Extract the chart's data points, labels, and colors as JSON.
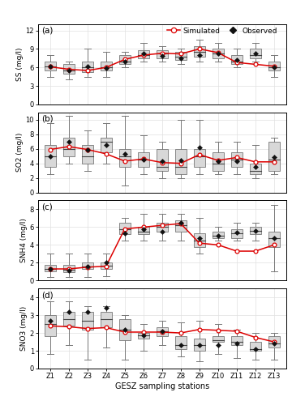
{
  "stations": [
    "Z1",
    "Z2",
    "Z3",
    "Z4",
    "Z5",
    "Z6",
    "Z7",
    "Z8",
    "Z9",
    "Z10",
    "Z11",
    "Z12",
    "Z13"
  ],
  "xlabel": "GESZ sampling stations",
  "panels": [
    {
      "label": "(a)",
      "ylabel": "SS (mg/l)",
      "ylim": [
        0,
        13
      ],
      "yticks": [
        0,
        3,
        6,
        9,
        12
      ],
      "simulated": [
        6.1,
        5.7,
        5.5,
        6.0,
        7.3,
        8.0,
        8.3,
        8.2,
        9.0,
        8.4,
        6.8,
        6.5,
        6.2
      ],
      "observed": [
        6.2,
        5.5,
        6.2,
        5.9,
        7.0,
        8.2,
        7.9,
        7.5,
        8.0,
        8.3,
        7.2,
        8.2,
        6.0
      ],
      "box_q1": [
        5.5,
        5.0,
        5.2,
        5.5,
        6.5,
        7.5,
        7.5,
        7.2,
        7.8,
        7.5,
        6.5,
        7.5,
        5.5
      ],
      "box_q3": [
        7.0,
        6.5,
        7.0,
        7.0,
        8.0,
        8.8,
        8.8,
        8.5,
        9.5,
        9.0,
        8.0,
        9.0,
        7.0
      ],
      "box_med": [
        6.2,
        5.5,
        6.0,
        6.0,
        7.0,
        8.0,
        8.2,
        7.8,
        8.5,
        8.2,
        7.0,
        8.0,
        6.0
      ],
      "box_wlo": [
        4.5,
        4.0,
        4.5,
        4.5,
        6.0,
        7.0,
        7.0,
        6.5,
        7.0,
        7.0,
        6.0,
        7.0,
        4.5
      ],
      "box_whi": [
        8.0,
        7.0,
        9.0,
        8.5,
        8.5,
        10.0,
        9.5,
        9.0,
        10.5,
        10.0,
        9.0,
        10.0,
        8.0
      ]
    },
    {
      "label": "(b)",
      "ylabel": "SO2 (mg/l)",
      "ylim": [
        0,
        11
      ],
      "yticks": [
        0,
        2,
        4,
        6,
        8,
        10
      ],
      "simulated": [
        5.9,
        6.3,
        5.9,
        5.3,
        4.3,
        4.6,
        4.1,
        4.0,
        5.2,
        4.4,
        4.8,
        4.2,
        4.2
      ],
      "observed": [
        5.0,
        7.0,
        5.8,
        6.5,
        5.3,
        4.5,
        4.3,
        4.4,
        6.2,
        4.3,
        4.3,
        3.5,
        4.8
      ],
      "box_q1": [
        3.5,
        5.0,
        4.0,
        5.5,
        3.5,
        3.5,
        3.0,
        2.5,
        3.5,
        3.0,
        3.5,
        2.5,
        3.0
      ],
      "box_q3": [
        6.5,
        7.5,
        6.5,
        7.5,
        6.0,
        5.5,
        6.0,
        6.0,
        6.0,
        5.5,
        5.5,
        4.0,
        7.0
      ],
      "box_med": [
        5.0,
        6.0,
        5.0,
        7.0,
        5.0,
        4.5,
        3.5,
        3.5,
        5.0,
        4.0,
        4.5,
        3.0,
        4.5
      ],
      "box_wlo": [
        2.5,
        4.0,
        3.0,
        4.0,
        1.0,
        2.5,
        2.0,
        2.0,
        2.5,
        2.5,
        2.5,
        2.0,
        2.5
      ],
      "box_whi": [
        9.5,
        10.5,
        8.5,
        9.5,
        10.5,
        7.8,
        7.0,
        10.0,
        10.0,
        7.0,
        7.0,
        6.5,
        7.5
      ]
    },
    {
      "label": "(c)",
      "ylabel": "SNH4 (mg/l)",
      "ylim": [
        0,
        9
      ],
      "yticks": [
        0,
        2,
        4,
        6,
        8
      ],
      "simulated": [
        1.3,
        1.3,
        1.5,
        1.6,
        5.8,
        6.0,
        6.2,
        6.4,
        4.2,
        4.0,
        3.3,
        3.3,
        4.0
      ],
      "observed": [
        1.3,
        1.1,
        1.6,
        2.0,
        5.3,
        5.8,
        5.5,
        6.5,
        4.8,
        5.0,
        5.4,
        5.6,
        4.8
      ],
      "box_q1": [
        1.0,
        0.9,
        1.3,
        1.3,
        5.2,
        5.2,
        5.5,
        5.5,
        3.8,
        4.8,
        4.8,
        5.2,
        3.8
      ],
      "box_q3": [
        1.8,
        1.8,
        2.0,
        2.0,
        6.5,
        6.0,
        6.5,
        6.8,
        5.3,
        5.5,
        5.8,
        6.0,
        5.5
      ],
      "box_med": [
        1.3,
        1.2,
        1.6,
        1.7,
        5.8,
        5.5,
        6.0,
        6.2,
        4.5,
        5.0,
        5.3,
        5.6,
        4.8
      ],
      "box_wlo": [
        0.4,
        0.4,
        0.4,
        0.5,
        4.5,
        4.5,
        4.5,
        4.5,
        3.0,
        4.5,
        4.5,
        4.5,
        1.0
      ],
      "box_whi": [
        3.0,
        3.0,
        3.0,
        3.0,
        7.0,
        7.5,
        7.5,
        7.5,
        7.0,
        6.0,
        6.5,
        6.5,
        8.5
      ]
    },
    {
      "label": "(d)",
      "ylabel": "SNO3 (mg/l)",
      "ylim": [
        0,
        4.5
      ],
      "yticks": [
        0,
        1,
        2,
        3,
        4
      ],
      "simulated": [
        2.4,
        2.35,
        2.25,
        2.3,
        2.05,
        2.05,
        2.05,
        2.0,
        2.2,
        2.15,
        2.1,
        1.75,
        1.5
      ],
      "observed": [
        2.7,
        3.2,
        3.2,
        3.4,
        2.2,
        1.85,
        2.1,
        1.3,
        1.3,
        1.3,
        1.4,
        1.1,
        1.4
      ],
      "box_q1": [
        1.8,
        2.4,
        2.2,
        2.3,
        1.6,
        1.7,
        1.8,
        1.1,
        1.0,
        1.5,
        1.3,
        1.0,
        1.2
      ],
      "box_q3": [
        3.0,
        3.2,
        3.2,
        3.2,
        2.8,
        2.0,
        2.3,
        1.8,
        1.7,
        1.8,
        1.8,
        1.5,
        1.8
      ],
      "box_med": [
        2.5,
        2.8,
        2.7,
        2.8,
        2.2,
        1.85,
        2.1,
        1.3,
        1.3,
        1.6,
        1.5,
        1.1,
        1.4
      ],
      "box_wlo": [
        0.8,
        1.3,
        0.5,
        1.2,
        0.5,
        1.0,
        1.3,
        0.7,
        0.4,
        0.8,
        0.6,
        0.5,
        0.5
      ],
      "box_whi": [
        3.8,
        3.8,
        3.5,
        3.5,
        3.0,
        2.5,
        2.7,
        2.6,
        2.7,
        2.5,
        2.2,
        2.0,
        2.0
      ]
    }
  ],
  "sim_color": "#dd0000",
  "obs_color": "#111111",
  "box_face": "#d8d8d8",
  "box_edge": "#777777",
  "grid_color": "#e0e0e0",
  "bg_color": "#ffffff",
  "legend_sim_label": "Simulated",
  "legend_obs_label": "Observed"
}
